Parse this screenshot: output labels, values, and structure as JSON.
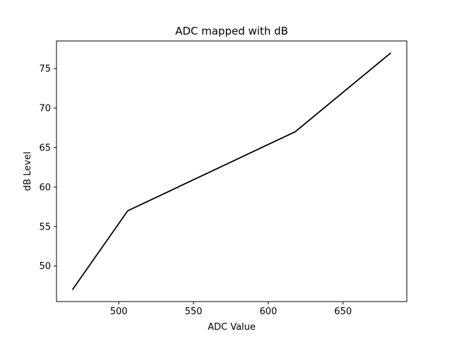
{
  "chart_data": {
    "type": "line",
    "title": "ADC mapped with dB",
    "xlabel": "ADC Value",
    "ylabel": "dB Level",
    "x": [
      469,
      506,
      618,
      682
    ],
    "series": [
      {
        "values": [
          47,
          57,
          67,
          77
        ],
        "color": "#000000"
      }
    ],
    "xlim": [
      458.35,
      692.65
    ],
    "ylim": [
      45.5,
      78.5
    ],
    "xticks": [
      500,
      550,
      600,
      650
    ],
    "yticks": [
      50,
      55,
      60,
      65,
      70,
      75
    ],
    "xtick_labels": [
      "500",
      "550",
      "600",
      "650"
    ],
    "ytick_labels": [
      "50",
      "55",
      "60",
      "65",
      "70",
      "75"
    ],
    "grid": false,
    "legend": "none"
  }
}
